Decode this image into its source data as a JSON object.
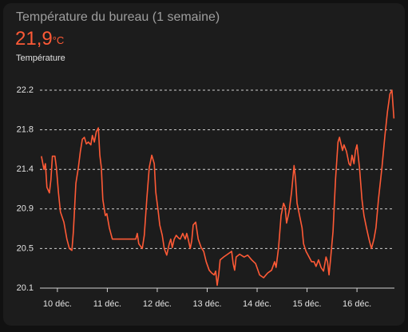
{
  "chart_data": {
    "type": "line",
    "title": "Température du bureau (1 semaine)",
    "current_value": "21,9",
    "current_unit": "°C",
    "x": [
      9.68,
      9.73,
      9.76,
      9.79,
      9.84,
      9.87,
      9.9,
      9.95,
      9.98,
      10.02,
      10.06,
      10.13,
      10.19,
      10.24,
      10.29,
      10.32,
      10.37,
      10.42,
      10.46,
      10.5,
      10.54,
      10.58,
      10.62,
      10.67,
      10.7,
      10.74,
      10.78,
      10.82,
      10.85,
      10.88,
      10.91,
      10.96,
      10.99,
      11.04,
      11.1,
      11.17,
      11.57,
      11.6,
      11.63,
      11.7,
      11.74,
      11.79,
      11.84,
      11.89,
      11.94,
      11.97,
      12.02,
      12.05,
      12.1,
      12.14,
      12.19,
      12.24,
      12.27,
      12.3,
      12.34,
      12.38,
      12.43,
      12.46,
      12.51,
      12.56,
      12.59,
      12.62,
      12.66,
      12.69,
      12.72,
      12.77,
      12.82,
      12.88,
      12.93,
      12.98,
      13.04,
      13.09,
      13.14,
      13.17,
      13.2,
      13.23,
      13.26,
      13.33,
      13.41,
      13.49,
      13.52,
      13.55,
      13.58,
      13.65,
      13.74,
      13.81,
      13.89,
      13.97,
      14.05,
      14.13,
      14.21,
      14.29,
      14.35,
      14.38,
      14.43,
      14.48,
      14.53,
      14.56,
      14.59,
      14.64,
      14.69,
      14.74,
      14.77,
      14.8,
      14.85,
      14.9,
      14.93,
      14.98,
      15.02,
      15.09,
      15.14,
      15.18,
      15.23,
      15.28,
      15.33,
      15.38,
      15.41,
      15.44,
      15.47,
      15.52,
      15.57,
      15.62,
      15.65,
      15.68,
      15.71,
      15.74,
      15.79,
      15.84,
      15.87,
      15.9,
      15.94,
      15.97,
      16.0,
      16.05,
      16.1,
      16.14,
      16.19,
      16.24,
      16.29,
      16.34,
      16.38,
      16.43,
      16.5,
      16.56,
      16.61,
      16.66,
      16.7,
      16.74
    ],
    "series": [
      {
        "name": "Température",
        "color": "#ff5a36",
        "values": [
          21.5,
          21.36,
          21.42,
          21.17,
          21.11,
          21.25,
          21.5,
          21.5,
          21.38,
          21.12,
          20.91,
          20.8,
          20.62,
          20.52,
          20.5,
          20.7,
          21.21,
          21.38,
          21.55,
          21.68,
          21.7,
          21.63,
          21.65,
          21.62,
          21.72,
          21.65,
          21.76,
          21.8,
          21.51,
          21.38,
          21.04,
          20.87,
          20.89,
          20.74,
          20.62,
          20.62,
          20.62,
          20.68,
          20.57,
          20.52,
          20.66,
          21.04,
          21.38,
          21.51,
          21.42,
          21.12,
          20.91,
          20.77,
          20.66,
          20.52,
          20.45,
          20.57,
          20.62,
          20.53,
          20.62,
          20.66,
          20.63,
          20.62,
          20.68,
          20.62,
          20.68,
          20.62,
          20.52,
          20.6,
          20.77,
          20.8,
          20.62,
          20.53,
          20.49,
          20.38,
          20.29,
          20.26,
          20.24,
          20.28,
          20.13,
          20.24,
          20.4,
          20.43,
          20.46,
          20.49,
          20.36,
          20.29,
          20.43,
          20.46,
          20.43,
          20.45,
          20.4,
          20.36,
          20.24,
          20.21,
          20.26,
          20.29,
          20.38,
          20.32,
          20.53,
          20.87,
          21.0,
          20.96,
          20.79,
          20.91,
          21.12,
          21.4,
          21.25,
          21.0,
          20.87,
          20.74,
          20.57,
          20.49,
          20.45,
          20.38,
          20.38,
          20.33,
          20.4,
          20.32,
          20.28,
          20.43,
          20.38,
          20.24,
          20.4,
          20.7,
          21.25,
          21.65,
          21.7,
          21.63,
          21.56,
          21.62,
          21.55,
          21.42,
          21.4,
          21.51,
          21.42,
          21.56,
          21.62,
          21.38,
          21.04,
          20.87,
          20.74,
          20.62,
          20.52,
          20.62,
          20.74,
          21.04,
          21.38,
          21.72,
          21.97,
          22.16,
          22.2,
          21.9
        ]
      }
    ],
    "xlim": [
      9.65,
      16.75
    ],
    "xticks": [
      {
        "value": 10,
        "label": "10 déc."
      },
      {
        "value": 11,
        "label": "11 déc."
      },
      {
        "value": 12,
        "label": "12 déc."
      },
      {
        "value": 13,
        "label": "13 déc."
      },
      {
        "value": 14,
        "label": "14 déc."
      },
      {
        "value": 15,
        "label": "15 déc."
      },
      {
        "value": 16,
        "label": "16 déc."
      }
    ],
    "ylim": [
      20.1,
      22.2
    ],
    "yticks": [
      20.1,
      {
        "value": 20.52,
        "label": "20.5"
      },
      {
        "value": 20.94,
        "label": "20.9"
      },
      {
        "value": 21.36,
        "label": "21.4"
      },
      {
        "value": 21.78,
        "label": "21.8"
      },
      22.2
    ],
    "grid": true
  }
}
